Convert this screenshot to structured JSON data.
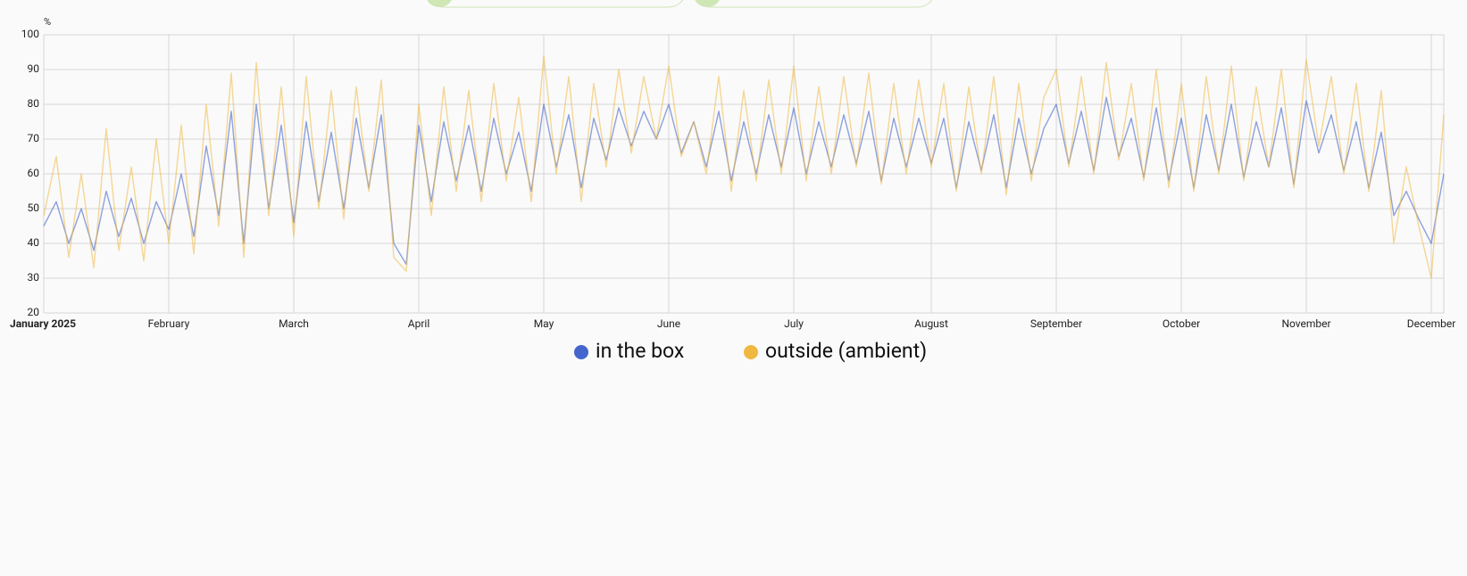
{
  "chart_data": {
    "type": "line",
    "y_label": "%",
    "categories": [
      "January 2025",
      null,
      null,
      null,
      null,
      null,
      null,
      null,
      null,
      null,
      "February",
      null,
      null,
      null,
      null,
      null,
      null,
      null,
      null,
      null,
      "March",
      null,
      null,
      null,
      null,
      null,
      null,
      null,
      null,
      null,
      "April",
      null,
      null,
      null,
      null,
      null,
      null,
      null,
      null,
      null,
      "May",
      null,
      null,
      null,
      null,
      null,
      null,
      null,
      null,
      null,
      "June",
      null,
      null,
      null,
      null,
      null,
      null,
      null,
      null,
      null,
      "July",
      null,
      null,
      null,
      null,
      null,
      null,
      null,
      null,
      null,
      null,
      "August",
      null,
      null,
      null,
      null,
      null,
      null,
      null,
      null,
      null,
      "September",
      null,
      null,
      null,
      null,
      null,
      null,
      null,
      null,
      null,
      "October",
      null,
      null,
      null,
      null,
      null,
      null,
      null,
      null,
      null,
      "November",
      null,
      null,
      null,
      null,
      null,
      null,
      null,
      null,
      null,
      "December",
      null
    ],
    "series": [
      {
        "name": "in the box",
        "color": "#4466cc",
        "values": [
          45,
          52,
          40,
          50,
          38,
          55,
          42,
          53,
          40,
          52,
          44,
          60,
          42,
          68,
          48,
          78,
          40,
          80,
          50,
          74,
          46,
          75,
          52,
          72,
          50,
          76,
          56,
          77,
          40,
          34,
          74,
          52,
          75,
          58,
          74,
          55,
          76,
          60,
          72,
          55,
          80,
          62,
          77,
          56,
          76,
          64,
          79,
          68,
          78,
          70,
          80,
          66,
          75,
          62,
          78,
          58,
          75,
          60,
          77,
          62,
          79,
          60,
          75,
          62,
          77,
          63,
          78,
          58,
          76,
          62,
          76,
          63,
          76,
          56,
          75,
          61,
          77,
          56,
          76,
          60,
          73,
          80,
          63,
          78,
          61,
          82,
          65,
          76,
          59,
          79,
          58,
          76,
          56,
          77,
          61,
          80,
          59,
          75,
          62,
          79,
          57,
          81,
          66,
          77,
          61,
          75,
          56,
          72,
          48,
          55,
          47,
          40,
          60
        ]
      },
      {
        "name": "outside (ambient)",
        "color": "#f0b840",
        "values": [
          48,
          65,
          36,
          60,
          33,
          73,
          38,
          62,
          35,
          70,
          40,
          74,
          37,
          80,
          45,
          89,
          36,
          92,
          48,
          85,
          42,
          88,
          50,
          84,
          47,
          85,
          55,
          87,
          36,
          32,
          80,
          48,
          85,
          55,
          84,
          52,
          86,
          58,
          82,
          52,
          94,
          60,
          88,
          52,
          86,
          62,
          90,
          66,
          88,
          70,
          91,
          65,
          75,
          60,
          88,
          55,
          84,
          58,
          87,
          60,
          91,
          58,
          85,
          60,
          88,
          62,
          89,
          57,
          86,
          60,
          87,
          62,
          86,
          55,
          85,
          60,
          88,
          54,
          86,
          58,
          82,
          90,
          62,
          88,
          60,
          92,
          64,
          86,
          58,
          90,
          56,
          86,
          55,
          88,
          60,
          91,
          58,
          85,
          62,
          90,
          56,
          93,
          68,
          88,
          60,
          86,
          55,
          84,
          40,
          62,
          45,
          30,
          77
        ]
      }
    ],
    "ylim": [
      20,
      100
    ],
    "yticks": [
      20,
      30,
      40,
      50,
      60,
      70,
      80,
      90,
      100
    ],
    "grid": true
  }
}
